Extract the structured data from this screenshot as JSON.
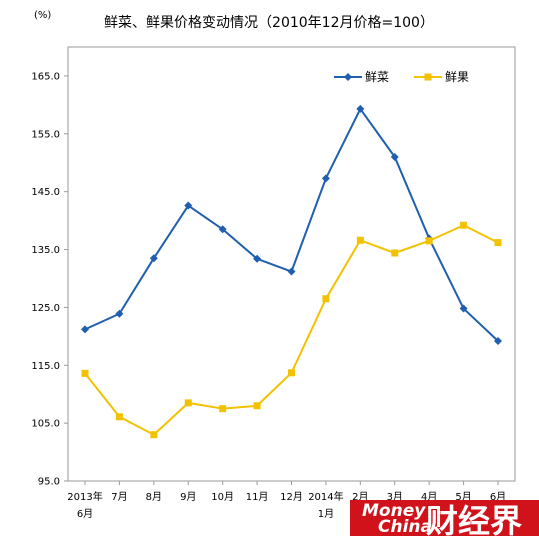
{
  "chart_data": {
    "type": "line",
    "title": "鲜菜、鲜果价格变动情况（2010年12月价格=100）",
    "unit": "(%)",
    "categories": [
      {
        "line1": "2013年",
        "line2": "6月"
      },
      {
        "line1": "7月",
        "line2": ""
      },
      {
        "line1": "8月",
        "line2": ""
      },
      {
        "line1": "9月",
        "line2": ""
      },
      {
        "line1": "10月",
        "line2": ""
      },
      {
        "line1": "11月",
        "line2": ""
      },
      {
        "line1": "12月",
        "line2": ""
      },
      {
        "line1": "2014年",
        "line2": "1月"
      },
      {
        "line1": "2月",
        "line2": ""
      },
      {
        "line1": "3月",
        "line2": ""
      },
      {
        "line1": "4月",
        "line2": ""
      },
      {
        "line1": "5月",
        "line2": ""
      },
      {
        "line1": "6月",
        "line2": ""
      }
    ],
    "series": [
      {
        "name": "鲜菜",
        "color": "#1f5fad",
        "marker": "diamond",
        "values": [
          121.2,
          123.9,
          133.5,
          142.6,
          138.5,
          133.4,
          131.2,
          147.3,
          159.3,
          151.0,
          136.9,
          124.8,
          119.2
        ]
      },
      {
        "name": "鲜果",
        "color": "#f2c200",
        "marker": "square",
        "values": [
          113.6,
          106.1,
          103.0,
          108.5,
          107.5,
          108.0,
          113.7,
          126.5,
          136.6,
          134.4,
          136.5,
          139.2,
          136.2
        ]
      }
    ],
    "yticks": [
      "95.0",
      "105.0",
      "115.0",
      "125.0",
      "135.0",
      "145.0",
      "155.0",
      "165.0"
    ],
    "ylim": [
      95,
      170
    ],
    "legend_position": "top-right",
    "grid": false
  },
  "watermark": {
    "line1": "Money",
    "line2": "China",
    "brand": "财经界",
    "background_color": "#d0121b"
  }
}
